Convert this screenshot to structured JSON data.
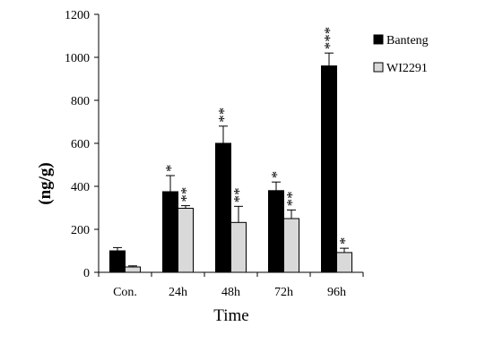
{
  "chart_data": {
    "type": "bar",
    "title": "",
    "xlabel": "Time",
    "ylabel": "(ng/g)",
    "ylim": [
      0,
      1200
    ],
    "yticks": [
      0,
      200,
      400,
      600,
      800,
      1000,
      1200
    ],
    "categories": [
      "Con.",
      "24h",
      "48h",
      "72h",
      "96h"
    ],
    "series": [
      {
        "name": "Banteng",
        "color": "#000000",
        "values": [
          100,
          375,
          600,
          380,
          960
        ],
        "errors": [
          15,
          75,
          80,
          40,
          60
        ],
        "significance": [
          "",
          "*",
          "**",
          "*",
          "***"
        ]
      },
      {
        "name": "WI2291",
        "color": "#d9d9d9",
        "values": [
          25,
          298,
          232,
          250,
          92
        ],
        "errors": [
          5,
          12,
          75,
          40,
          20
        ],
        "significance": [
          "",
          "**",
          "**",
          "**",
          "*"
        ]
      }
    ],
    "legend_position": "right",
    "grid": false
  }
}
